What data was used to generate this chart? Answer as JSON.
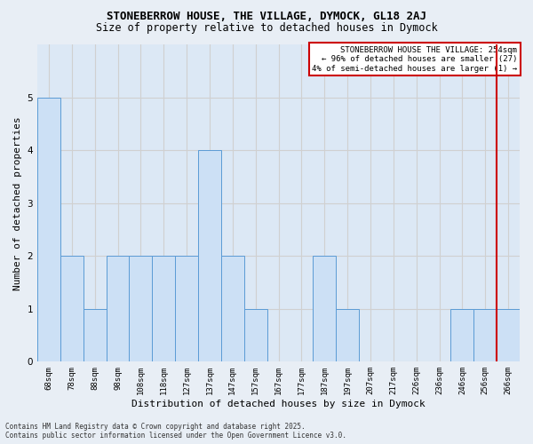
{
  "title": "STONEBERROW HOUSE, THE VILLAGE, DYMOCK, GL18 2AJ",
  "subtitle": "Size of property relative to detached houses in Dymock",
  "xlabel": "Distribution of detached houses by size in Dymock",
  "ylabel": "Number of detached properties",
  "categories": [
    "68sqm",
    "78sqm",
    "88sqm",
    "98sqm",
    "108sqm",
    "118sqm",
    "127sqm",
    "137sqm",
    "147sqm",
    "157sqm",
    "167sqm",
    "177sqm",
    "187sqm",
    "197sqm",
    "207sqm",
    "217sqm",
    "226sqm",
    "236sqm",
    "246sqm",
    "256sqm",
    "266sqm"
  ],
  "values": [
    5,
    2,
    1,
    2,
    2,
    2,
    2,
    4,
    2,
    1,
    0,
    0,
    2,
    1,
    0,
    0,
    0,
    0,
    1,
    1,
    1
  ],
  "bar_color": "#cce0f5",
  "bar_edge_color": "#5b9bd5",
  "grid_color": "#d0d0d0",
  "property_line_x": 19.5,
  "property_line_color": "#cc0000",
  "annotation_text": "STONEBERROW HOUSE THE VILLAGE: 254sqm\n← 96% of detached houses are smaller (27)\n4% of semi-detached houses are larger (1) →",
  "annotation_box_color": "#cc0000",
  "footer_line1": "Contains HM Land Registry data © Crown copyright and database right 2025.",
  "footer_line2": "Contains public sector information licensed under the Open Government Licence v3.0.",
  "ylim": [
    0,
    6
  ],
  "yticks": [
    0,
    1,
    2,
    3,
    4,
    5,
    6
  ],
  "bg_color": "#e8eef5",
  "plot_bg_color": "#dce8f5",
  "title_fontsize": 9,
  "subtitle_fontsize": 8.5,
  "tick_fontsize": 6.5,
  "ylabel_fontsize": 8,
  "xlabel_fontsize": 8,
  "annotation_fontsize": 6.5,
  "footer_fontsize": 5.5
}
